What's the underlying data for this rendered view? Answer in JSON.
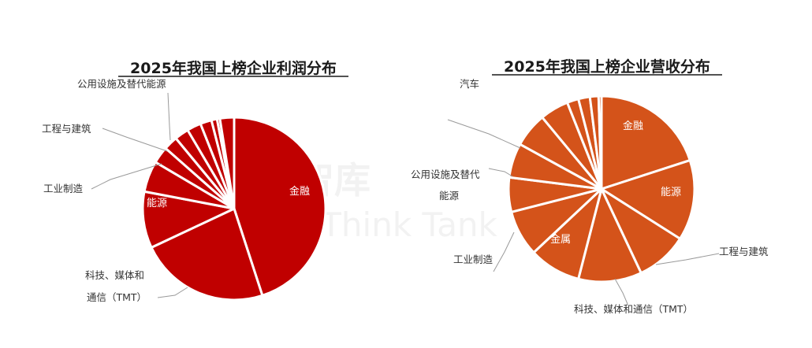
{
  "watermark": {
    "cn": "大咨询智库",
    "en": "Financial Think Tank"
  },
  "colors": {
    "profit": "#c00000",
    "revenue": "#d4531a",
    "separator": "#ffffff",
    "leader": "#9a9a9a"
  },
  "chart_data": [
    {
      "type": "pie",
      "title": "2025年我国上榜企业利润分布",
      "unit": "percent (estimated)",
      "slices": [
        {
          "label": "金融",
          "value": 45.0
        },
        {
          "label": "科技、媒体和通信（TMT）",
          "value": 23.0
        },
        {
          "label": "能源",
          "value": 10.0
        },
        {
          "label": "工业制造",
          "value": 5.5
        },
        {
          "label": "",
          "value": 3.0
        },
        {
          "label": "工程与建筑",
          "value": 2.5
        },
        {
          "label": "",
          "value": 2.5
        },
        {
          "label": "",
          "value": 2.5
        },
        {
          "label": "",
          "value": 2.0
        },
        {
          "label": "公用设施及替代能源",
          "value": 1.0
        },
        {
          "label": "",
          "value": 0.5
        },
        {
          "label": "",
          "value": 2.5
        }
      ],
      "labels": [
        {
          "text": "金融",
          "position": "inside"
        },
        {
          "text": "能源",
          "position": "inside"
        },
        {
          "text": "科技、媒体和",
          "text2": "通信（TMT）",
          "position": "outside"
        },
        {
          "text": "工业制造",
          "position": "outside"
        },
        {
          "text": "工程与建筑",
          "position": "outside"
        },
        {
          "text": "公用设施及替代能源",
          "position": "outside"
        }
      ]
    },
    {
      "type": "pie",
      "title": "2025年我国上榜企业营收分布",
      "unit": "percent (estimated)",
      "slices": [
        {
          "label": "金融",
          "value": 20.0
        },
        {
          "label": "能源",
          "value": 14.0
        },
        {
          "label": "工程与建筑",
          "value": 9.0
        },
        {
          "label": "科技、媒体和通信（TMT）",
          "value": 11.0
        },
        {
          "label": "金属",
          "value": 9.0
        },
        {
          "label": "工业制造",
          "value": 8.0
        },
        {
          "label": "",
          "value": 6.0
        },
        {
          "label": "公用设施及替代能源",
          "value": 6.0
        },
        {
          "label": "",
          "value": 6.0
        },
        {
          "label": "",
          "value": 5.0
        },
        {
          "label": "",
          "value": 2.0
        },
        {
          "label": "",
          "value": 2.0
        },
        {
          "label": "",
          "value": 1.5
        },
        {
          "label": "汽车",
          "value": 0.5
        }
      ],
      "labels": [
        {
          "text": "金融",
          "position": "inside"
        },
        {
          "text": "能源",
          "position": "inside"
        },
        {
          "text": "金属",
          "position": "inside"
        },
        {
          "text": "工程与建筑",
          "position": "outside"
        },
        {
          "text": "科技、媒体和通信（TMT）",
          "position": "outside"
        },
        {
          "text": "工业制造",
          "position": "outside"
        },
        {
          "text": "公用设施及替代",
          "text2": "能源",
          "position": "outside"
        },
        {
          "text": "汽车",
          "position": "outside"
        }
      ]
    }
  ]
}
